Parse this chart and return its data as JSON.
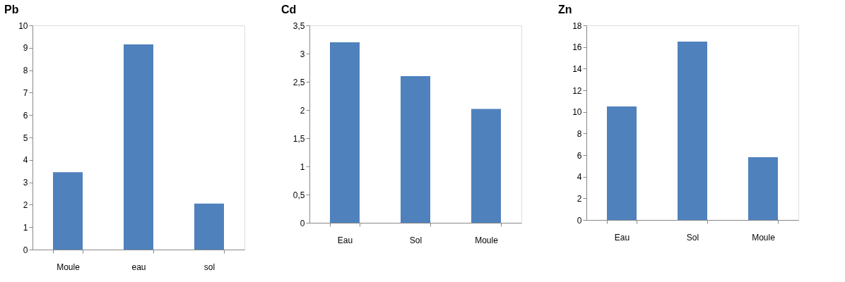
{
  "chart_data": [
    {
      "type": "bar",
      "title": "Pb",
      "categories": [
        "Moule",
        "eau",
        "sol"
      ],
      "values": [
        3.45,
        9.15,
        2.05
      ],
      "color": "#4f81bd",
      "ylim": [
        0,
        10
      ],
      "yticks": [
        0,
        1,
        2,
        3,
        4,
        5,
        6,
        7,
        8,
        9,
        10
      ],
      "grid": false
    },
    {
      "type": "bar",
      "title": "Cd",
      "categories": [
        "Eau",
        "Sol",
        "Moule"
      ],
      "values": [
        3.2,
        2.6,
        2.02
      ],
      "color": "#4f81bd",
      "ylim": [
        0,
        3.5
      ],
      "yticks": [
        0,
        {
          "value": 0.5,
          "label": "0,5"
        },
        1,
        {
          "value": 1.5,
          "label": "1,5"
        },
        2,
        {
          "value": 2.5,
          "label": "2,5"
        },
        3,
        {
          "value": 3.5,
          "label": "3,5"
        }
      ],
      "grid": false
    },
    {
      "type": "bar",
      "title": "Zn",
      "categories": [
        "Eau",
        "Sol",
        "Moule"
      ],
      "values": [
        10.5,
        16.5,
        5.8
      ],
      "color": "#4f81bd",
      "ylim": [
        0,
        18
      ],
      "yticks": [
        0,
        2,
        4,
        6,
        8,
        10,
        12,
        14,
        16,
        18
      ],
      "grid": false
    }
  ]
}
